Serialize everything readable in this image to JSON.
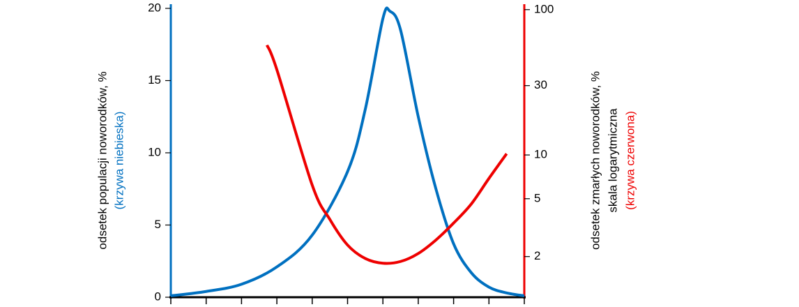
{
  "chart_data": {
    "type": "line",
    "y_label": "odsetek populacji noworodków, %",
    "y_label_note": "(krzywa niebieska)",
    "y2_label": "odsetek zmarłych noworodków, %",
    "y2_label_scale": "skala logarytmiczna",
    "y2_label_note": "(krzywa czerwona)",
    "xlim": [
      0,
      10
    ],
    "xticks": [
      0,
      1,
      2,
      3,
      4,
      5,
      6,
      7,
      8,
      9,
      10
    ],
    "ylim": [
      0,
      20
    ],
    "yticks": [
      0,
      5,
      10,
      15,
      20
    ],
    "y_color": "#0070c0",
    "y2lim": [
      1.05,
      102
    ],
    "y2ticks": [
      2,
      5,
      10,
      30,
      100
    ],
    "y2_log": true,
    "y2_color": "#ee0000",
    "series": [
      {
        "name": "krzywa niebieska",
        "color": "#0070c0",
        "x": [
          0,
          1,
          2,
          3,
          4,
          5,
          5.5,
          6,
          6.2,
          6.5,
          7,
          7.5,
          8,
          8.5,
          9,
          9.5,
          10
        ],
        "values": [
          0.1,
          0.4,
          0.9,
          2.1,
          4.3,
          8.7,
          13,
          19.3,
          19.8,
          18.5,
          12.5,
          7.5,
          3.7,
          1.7,
          0.7,
          0.3,
          0.1
        ]
      },
      {
        "name": "krzywa czerwona",
        "color": "#ee0000",
        "axis": "y2",
        "x": [
          2.72,
          3,
          4,
          4.5,
          5,
          5.5,
          6,
          6.5,
          7,
          7.5,
          8,
          8.5,
          9,
          9.5
        ],
        "values": [
          57,
          38.6,
          6.2,
          3.6,
          2.4,
          1.94,
          1.8,
          1.85,
          2.1,
          2.6,
          3.4,
          4.6,
          6.9,
          10.2
        ]
      }
    ]
  }
}
